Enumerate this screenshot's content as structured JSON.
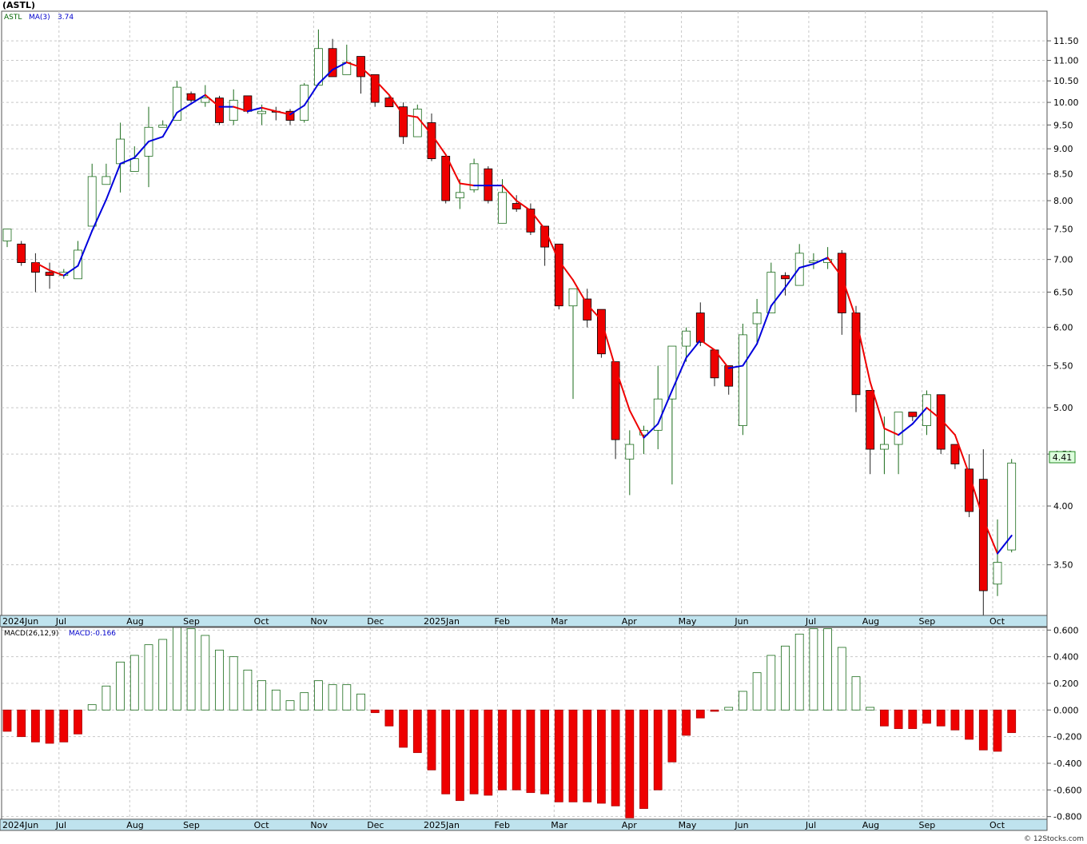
{
  "chart_data": {
    "type": "candlestick",
    "title": "(ASTL)",
    "ticker": "ASTL",
    "ma_label": "MA(3)",
    "ma_value": "3.74",
    "last_price": "4.41",
    "watermark": "© 12Stocks.com",
    "price_axis": {
      "scale": "log",
      "ylim": [
        3.12,
        12.3
      ],
      "ticks": [
        "3.50",
        "4.00",
        "4.50",
        "5.00",
        "5.50",
        "6.00",
        "6.50",
        "7.00",
        "7.50",
        "8.00",
        "8.50",
        "9.00",
        "9.50",
        "10.00",
        "10.50",
        "11.00",
        "11.50"
      ]
    },
    "x_labels": [
      "2024Jun",
      "Jul",
      "Aug",
      "Sep",
      "Oct",
      "Nov",
      "Dec",
      "2025Jan",
      "Feb",
      "Mar",
      "Apr",
      "May",
      "Jun",
      "Jul",
      "Aug",
      "Sep",
      "Oct"
    ],
    "x_label_weeks": [
      0,
      4,
      9,
      13,
      18,
      22,
      26,
      30,
      35,
      39,
      44,
      48,
      52,
      57,
      61,
      65,
      70
    ],
    "grid": true,
    "candles": [
      [
        7.3,
        7.5,
        7.2,
        7.5
      ],
      [
        7.25,
        7.3,
        6.9,
        6.95
      ],
      [
        6.95,
        7.1,
        6.5,
        6.8
      ],
      [
        6.8,
        6.95,
        6.55,
        6.75
      ],
      [
        6.75,
        6.85,
        6.7,
        6.8
      ],
      [
        6.7,
        7.3,
        6.7,
        7.15
      ],
      [
        7.55,
        8.7,
        7.55,
        8.45
      ],
      [
        8.3,
        8.7,
        8.3,
        8.45
      ],
      [
        8.7,
        9.55,
        8.15,
        9.2
      ],
      [
        8.55,
        9.05,
        8.55,
        8.8
      ],
      [
        8.85,
        9.9,
        8.25,
        9.45
      ],
      [
        9.45,
        9.6,
        9.45,
        9.5
      ],
      [
        9.6,
        10.5,
        9.6,
        10.35
      ],
      [
        10.2,
        10.25,
        10.0,
        10.05
      ],
      [
        10.0,
        10.4,
        9.9,
        10.1
      ],
      [
        10.1,
        10.15,
        9.5,
        9.55
      ],
      [
        9.6,
        10.3,
        9.5,
        10.05
      ],
      [
        10.15,
        10.15,
        9.75,
        9.8
      ],
      [
        9.75,
        9.95,
        9.5,
        9.8
      ],
      [
        9.8,
        9.9,
        9.6,
        9.78
      ],
      [
        9.8,
        9.85,
        9.5,
        9.6
      ],
      [
        9.6,
        10.45,
        9.55,
        10.4
      ],
      [
        10.4,
        11.8,
        10.4,
        11.3
      ],
      [
        11.3,
        11.55,
        10.6,
        10.6
      ],
      [
        10.65,
        11.4,
        10.65,
        10.95
      ],
      [
        11.1,
        11.1,
        10.2,
        10.6
      ],
      [
        10.65,
        10.65,
        9.9,
        10.0
      ],
      [
        10.1,
        10.15,
        9.9,
        9.9
      ],
      [
        9.9,
        10.0,
        9.1,
        9.25
      ],
      [
        9.25,
        9.95,
        9.25,
        9.85
      ],
      [
        9.55,
        9.75,
        8.75,
        8.8
      ],
      [
        8.85,
        8.85,
        7.95,
        8.0
      ],
      [
        8.05,
        8.4,
        7.85,
        8.15
      ],
      [
        8.2,
        8.8,
        8.15,
        8.7
      ],
      [
        8.6,
        8.65,
        7.95,
        8.0
      ],
      [
        7.6,
        8.4,
        7.6,
        8.15
      ],
      [
        7.95,
        8.1,
        7.8,
        7.85
      ],
      [
        7.85,
        7.95,
        7.4,
        7.45
      ],
      [
        7.55,
        7.55,
        6.9,
        7.2
      ],
      [
        7.25,
        7.25,
        6.25,
        6.3
      ],
      [
        6.3,
        6.55,
        5.1,
        6.55
      ],
      [
        6.4,
        6.55,
        6.0,
        6.1
      ],
      [
        6.25,
        6.25,
        5.6,
        5.65
      ],
      [
        5.55,
        5.55,
        4.45,
        4.65
      ],
      [
        4.45,
        4.75,
        4.1,
        4.6
      ],
      [
        4.7,
        4.8,
        4.5,
        4.75
      ],
      [
        4.75,
        5.5,
        4.55,
        5.1
      ],
      [
        5.1,
        5.75,
        4.2,
        5.75
      ],
      [
        5.75,
        6.0,
        5.55,
        5.95
      ],
      [
        6.2,
        6.35,
        5.75,
        5.8
      ],
      [
        5.7,
        5.7,
        5.25,
        5.35
      ],
      [
        5.5,
        5.5,
        5.15,
        5.25
      ],
      [
        4.8,
        6.05,
        4.7,
        5.9
      ],
      [
        6.05,
        6.4,
        5.8,
        6.2
      ],
      [
        6.2,
        6.95,
        6.2,
        6.8
      ],
      [
        6.75,
        6.8,
        6.45,
        6.7
      ],
      [
        6.6,
        7.25,
        6.6,
        7.1
      ],
      [
        6.95,
        7.1,
        6.85,
        6.98
      ],
      [
        6.95,
        7.2,
        6.85,
        7.0
      ],
      [
        7.1,
        7.15,
        5.9,
        6.2
      ],
      [
        6.2,
        6.3,
        4.95,
        5.15
      ],
      [
        5.2,
        5.2,
        4.3,
        4.55
      ],
      [
        4.55,
        4.9,
        4.3,
        4.6
      ],
      [
        4.6,
        4.95,
        4.3,
        4.95
      ],
      [
        4.95,
        4.95,
        4.85,
        4.9
      ],
      [
        4.8,
        5.2,
        4.7,
        5.15
      ],
      [
        5.15,
        5.15,
        4.5,
        4.55
      ],
      [
        4.6,
        4.6,
        4.35,
        4.4
      ],
      [
        4.35,
        4.5,
        3.9,
        3.95
      ],
      [
        4.25,
        4.55,
        3.12,
        3.3
      ],
      [
        3.35,
        3.88,
        3.26,
        3.52
      ],
      [
        3.62,
        4.45,
        3.6,
        4.41
      ]
    ],
    "ma3": [
      null,
      null,
      6.95,
      6.83,
      6.75,
      6.9,
      7.47,
      8.02,
      8.7,
      8.82,
      9.15,
      9.25,
      9.77,
      9.97,
      10.17,
      9.9,
      9.9,
      9.8,
      9.88,
      9.8,
      9.73,
      9.93,
      10.43,
      10.77,
      10.95,
      10.83,
      10.52,
      10.17,
      9.72,
      9.67,
      9.3,
      8.88,
      8.32,
      8.28,
      8.28,
      8.28,
      8.0,
      7.82,
      7.5,
      6.98,
      6.68,
      6.32,
      6.1,
      5.47,
      4.97,
      4.67,
      4.82,
      5.2,
      5.6,
      5.83,
      5.7,
      5.47,
      5.5,
      5.78,
      6.3,
      6.57,
      6.87,
      6.93,
      7.03,
      6.73,
      6.12,
      5.3,
      4.77,
      4.7,
      4.82,
      5.0,
      4.87,
      4.7,
      4.3,
      3.88,
      3.59,
      3.74
    ],
    "macd": {
      "label": "MACD(26,12,9)",
      "value_label": "MACD:-0.166",
      "ylim": [
        -0.82,
        0.62
      ],
      "ticks": [
        "0.600",
        "0.400",
        "0.200",
        "0.000",
        "-0.200",
        "-0.400",
        "-0.600",
        "-0.800"
      ],
      "values": [
        -0.16,
        -0.2,
        -0.24,
        -0.25,
        -0.24,
        -0.18,
        0.04,
        0.18,
        0.36,
        0.41,
        0.49,
        0.53,
        0.62,
        0.61,
        0.56,
        0.45,
        0.4,
        0.3,
        0.22,
        0.15,
        0.07,
        0.13,
        0.22,
        0.19,
        0.19,
        0.12,
        -0.02,
        -0.12,
        -0.28,
        -0.32,
        -0.45,
        -0.63,
        -0.68,
        -0.63,
        -0.64,
        -0.6,
        -0.6,
        -0.62,
        -0.63,
        -0.69,
        -0.69,
        -0.69,
        -0.7,
        -0.72,
        -0.81,
        -0.74,
        -0.6,
        -0.39,
        -0.19,
        -0.06,
        -0.01,
        0.02,
        0.14,
        0.28,
        0.41,
        0.48,
        0.57,
        0.61,
        0.61,
        0.47,
        0.25,
        0.02,
        -0.12,
        -0.14,
        -0.14,
        -0.1,
        -0.12,
        -0.15,
        -0.22,
        -0.3,
        -0.31,
        -0.17
      ]
    }
  }
}
